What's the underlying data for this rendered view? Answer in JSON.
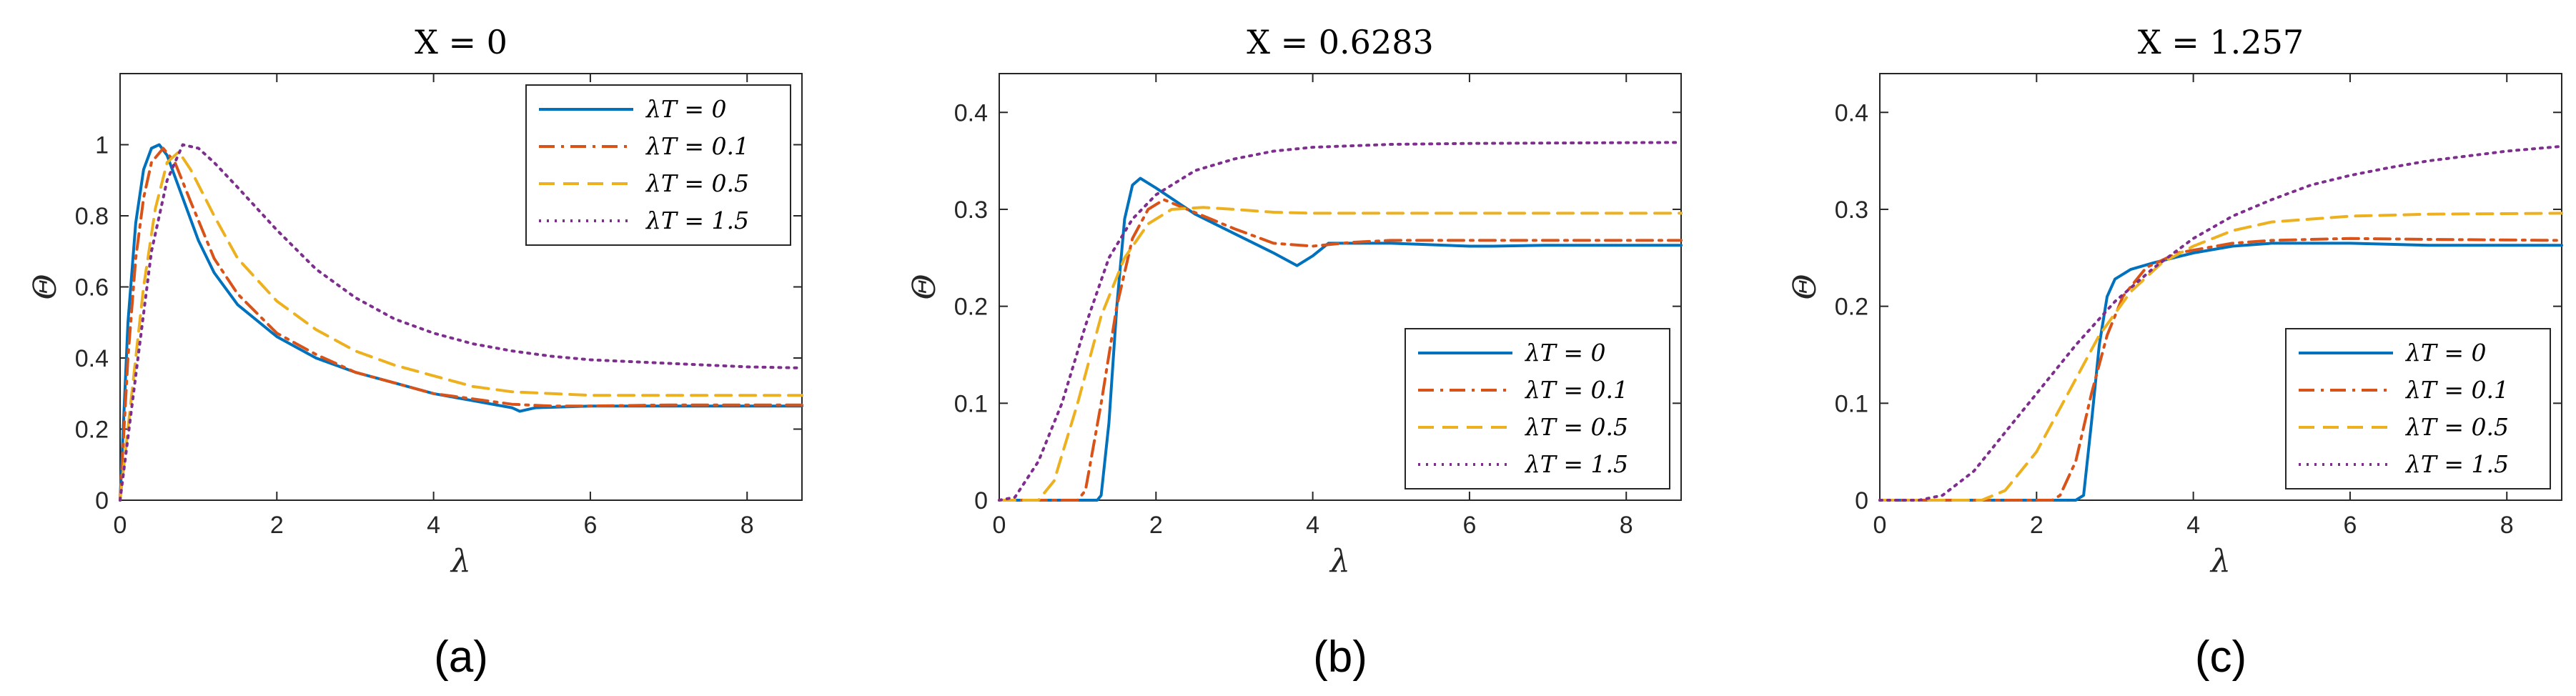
{
  "chart_data": [
    {
      "type": "line",
      "panel_caption": "(a)",
      "title": "X = 0",
      "xlabel": "λ",
      "ylabel": "Θ",
      "xlim": [
        0,
        8.7
      ],
      "ylim": [
        0,
        1.2
      ],
      "xticks": [
        "0",
        "2",
        "4",
        "6",
        "8"
      ],
      "yticks": [
        "0",
        "0.2",
        "0.4",
        "0.6",
        "0.8",
        "1"
      ],
      "legend_position": "top-right",
      "series": [
        {
          "name": "λT = 0",
          "color": "#0072BD",
          "dash": "solid",
          "points": [
            [
              0,
              0
            ],
            [
              0.1,
              0.5
            ],
            [
              0.2,
              0.78
            ],
            [
              0.3,
              0.93
            ],
            [
              0.4,
              0.99
            ],
            [
              0.5,
              1.0
            ],
            [
              0.6,
              0.97
            ],
            [
              0.8,
              0.85
            ],
            [
              1.0,
              0.73
            ],
            [
              1.2,
              0.64
            ],
            [
              1.5,
              0.55
            ],
            [
              2.0,
              0.46
            ],
            [
              2.5,
              0.4
            ],
            [
              3.0,
              0.36
            ],
            [
              3.5,
              0.33
            ],
            [
              4.0,
              0.3
            ],
            [
              4.5,
              0.28
            ],
            [
              5.0,
              0.26
            ],
            [
              5.1,
              0.25
            ],
            [
              5.3,
              0.26
            ],
            [
              6.0,
              0.265
            ],
            [
              7.0,
              0.265
            ],
            [
              8.7,
              0.265
            ]
          ]
        },
        {
          "name": "λT = 0.1",
          "color": "#D95319",
          "dash": "dashdot",
          "points": [
            [
              0,
              0
            ],
            [
              0.1,
              0.4
            ],
            [
              0.2,
              0.68
            ],
            [
              0.3,
              0.85
            ],
            [
              0.4,
              0.95
            ],
            [
              0.55,
              0.99
            ],
            [
              0.7,
              0.95
            ],
            [
              0.9,
              0.84
            ],
            [
              1.2,
              0.68
            ],
            [
              1.5,
              0.58
            ],
            [
              2.0,
              0.47
            ],
            [
              2.5,
              0.41
            ],
            [
              3.0,
              0.36
            ],
            [
              3.5,
              0.33
            ],
            [
              4.0,
              0.3
            ],
            [
              4.5,
              0.285
            ],
            [
              5.0,
              0.27
            ],
            [
              5.5,
              0.265
            ],
            [
              6.0,
              0.265
            ],
            [
              7.0,
              0.268
            ],
            [
              8.7,
              0.268
            ]
          ]
        },
        {
          "name": "λT = 0.5",
          "color": "#EDB120",
          "dash": "dashed",
          "points": [
            [
              0,
              0
            ],
            [
              0.15,
              0.3
            ],
            [
              0.3,
              0.6
            ],
            [
              0.45,
              0.82
            ],
            [
              0.6,
              0.95
            ],
            [
              0.75,
              0.98
            ],
            [
              0.9,
              0.93
            ],
            [
              1.2,
              0.8
            ],
            [
              1.5,
              0.68
            ],
            [
              2.0,
              0.56
            ],
            [
              2.5,
              0.48
            ],
            [
              3.0,
              0.42
            ],
            [
              3.5,
              0.38
            ],
            [
              4.0,
              0.35
            ],
            [
              4.5,
              0.32
            ],
            [
              5.0,
              0.305
            ],
            [
              5.5,
              0.3
            ],
            [
              6.0,
              0.295
            ],
            [
              7.0,
              0.295
            ],
            [
              8.7,
              0.295
            ]
          ]
        },
        {
          "name": "λT = 1.5",
          "color": "#7E2F8E",
          "dash": "dotted",
          "points": [
            [
              0,
              0
            ],
            [
              0.2,
              0.35
            ],
            [
              0.4,
              0.7
            ],
            [
              0.6,
              0.9
            ],
            [
              0.8,
              1.0
            ],
            [
              1.0,
              0.99
            ],
            [
              1.2,
              0.95
            ],
            [
              1.5,
              0.88
            ],
            [
              2.0,
              0.76
            ],
            [
              2.5,
              0.65
            ],
            [
              3.0,
              0.57
            ],
            [
              3.5,
              0.51
            ],
            [
              4.0,
              0.47
            ],
            [
              4.5,
              0.44
            ],
            [
              5.0,
              0.42
            ],
            [
              5.5,
              0.405
            ],
            [
              6.0,
              0.395
            ],
            [
              7.0,
              0.385
            ],
            [
              8.0,
              0.375
            ],
            [
              8.7,
              0.372
            ]
          ]
        }
      ]
    },
    {
      "type": "line",
      "panel_caption": "(b)",
      "title": "X = 0.6283",
      "xlabel": "λ",
      "ylabel": "Θ",
      "xlim": [
        0,
        8.7
      ],
      "ylim": [
        0,
        0.44
      ],
      "xticks": [
        "0",
        "2",
        "4",
        "6",
        "8"
      ],
      "yticks": [
        "0",
        "0.1",
        "0.2",
        "0.3",
        "0.4"
      ],
      "legend_position": "bottom-right",
      "series": [
        {
          "name": "λT = 0",
          "color": "#0072BD",
          "dash": "solid",
          "points": [
            [
              0,
              0
            ],
            [
              1.25,
              0
            ],
            [
              1.3,
              0.005
            ],
            [
              1.4,
              0.08
            ],
            [
              1.5,
              0.2
            ],
            [
              1.6,
              0.29
            ],
            [
              1.7,
              0.325
            ],
            [
              1.8,
              0.332
            ],
            [
              2.0,
              0.322
            ],
            [
              2.5,
              0.295
            ],
            [
              3.0,
              0.275
            ],
            [
              3.5,
              0.255
            ],
            [
              3.8,
              0.242
            ],
            [
              4.0,
              0.252
            ],
            [
              4.2,
              0.265
            ],
            [
              4.6,
              0.265
            ],
            [
              5.0,
              0.265
            ],
            [
              6.0,
              0.262
            ],
            [
              6.3,
              0.262
            ],
            [
              7.0,
              0.263
            ],
            [
              8.7,
              0.263
            ]
          ]
        },
        {
          "name": "λT = 0.1",
          "color": "#D95319",
          "dash": "dashdot",
          "points": [
            [
              0,
              0
            ],
            [
              1.0,
              0
            ],
            [
              1.1,
              0.01
            ],
            [
              1.3,
              0.1
            ],
            [
              1.5,
              0.2
            ],
            [
              1.7,
              0.27
            ],
            [
              1.9,
              0.3
            ],
            [
              2.1,
              0.31
            ],
            [
              2.4,
              0.3
            ],
            [
              3.0,
              0.28
            ],
            [
              3.5,
              0.265
            ],
            [
              4.0,
              0.262
            ],
            [
              4.5,
              0.266
            ],
            [
              5.0,
              0.268
            ],
            [
              6.0,
              0.268
            ],
            [
              8.7,
              0.268
            ]
          ]
        },
        {
          "name": "λT = 0.5",
          "color": "#EDB120",
          "dash": "dashed",
          "points": [
            [
              0,
              0
            ],
            [
              0.5,
              0
            ],
            [
              0.7,
              0.02
            ],
            [
              1.0,
              0.1
            ],
            [
              1.3,
              0.19
            ],
            [
              1.6,
              0.25
            ],
            [
              1.9,
              0.285
            ],
            [
              2.2,
              0.3
            ],
            [
              2.6,
              0.302
            ],
            [
              3.0,
              0.3
            ],
            [
              3.5,
              0.297
            ],
            [
              4.0,
              0.296
            ],
            [
              5.0,
              0.296
            ],
            [
              8.7,
              0.296
            ]
          ]
        },
        {
          "name": "λT = 1.5",
          "color": "#7E2F8E",
          "dash": "dotted",
          "points": [
            [
              0,
              0
            ],
            [
              0.2,
              0.003
            ],
            [
              0.5,
              0.04
            ],
            [
              0.8,
              0.1
            ],
            [
              1.1,
              0.18
            ],
            [
              1.4,
              0.25
            ],
            [
              1.7,
              0.29
            ],
            [
              2.0,
              0.315
            ],
            [
              2.5,
              0.34
            ],
            [
              3.0,
              0.352
            ],
            [
              3.5,
              0.36
            ],
            [
              4.0,
              0.364
            ],
            [
              5.0,
              0.367
            ],
            [
              6.0,
              0.368
            ],
            [
              8.7,
              0.369
            ]
          ]
        }
      ]
    },
    {
      "type": "line",
      "panel_caption": "(c)",
      "title": "X = 1.257",
      "xlabel": "λ",
      "ylabel": "Θ",
      "xlim": [
        0,
        8.7
      ],
      "ylim": [
        0,
        0.44
      ],
      "xticks": [
        "0",
        "2",
        "4",
        "6",
        "8"
      ],
      "yticks": [
        "0",
        "0.1",
        "0.2",
        "0.3",
        "0.4"
      ],
      "legend_position": "bottom-right",
      "series": [
        {
          "name": "λT = 0",
          "color": "#0072BD",
          "dash": "solid",
          "points": [
            [
              0,
              0
            ],
            [
              2.5,
              0
            ],
            [
              2.6,
              0.005
            ],
            [
              2.7,
              0.08
            ],
            [
              2.8,
              0.16
            ],
            [
              2.9,
              0.21
            ],
            [
              3.0,
              0.228
            ],
            [
              3.2,
              0.238
            ],
            [
              3.5,
              0.245
            ],
            [
              4.0,
              0.255
            ],
            [
              4.5,
              0.262
            ],
            [
              5.0,
              0.265
            ],
            [
              6.0,
              0.265
            ],
            [
              7.0,
              0.263
            ],
            [
              8.7,
              0.263
            ]
          ]
        },
        {
          "name": "λT = 0.1",
          "color": "#D95319",
          "dash": "dashdot",
          "points": [
            [
              0,
              0
            ],
            [
              2.2,
              0
            ],
            [
              2.3,
              0.005
            ],
            [
              2.5,
              0.04
            ],
            [
              2.7,
              0.11
            ],
            [
              2.9,
              0.17
            ],
            [
              3.1,
              0.21
            ],
            [
              3.4,
              0.24
            ],
            [
              3.8,
              0.255
            ],
            [
              4.5,
              0.265
            ],
            [
              5.0,
              0.268
            ],
            [
              6.0,
              0.27
            ],
            [
              7.0,
              0.269
            ],
            [
              8.7,
              0.268
            ]
          ]
        },
        {
          "name": "λT = 0.5",
          "color": "#EDB120",
          "dash": "dashed",
          "points": [
            [
              0,
              0
            ],
            [
              1.3,
              0
            ],
            [
              1.6,
              0.01
            ],
            [
              2.0,
              0.05
            ],
            [
              2.4,
              0.11
            ],
            [
              2.8,
              0.17
            ],
            [
              3.2,
              0.215
            ],
            [
              3.6,
              0.245
            ],
            [
              4.0,
              0.262
            ],
            [
              4.5,
              0.278
            ],
            [
              5.0,
              0.287
            ],
            [
              6.0,
              0.293
            ],
            [
              7.0,
              0.295
            ],
            [
              8.7,
              0.296
            ]
          ]
        },
        {
          "name": "λT = 1.5",
          "color": "#7E2F8E",
          "dash": "dotted",
          "points": [
            [
              0,
              0
            ],
            [
              0.5,
              0
            ],
            [
              0.8,
              0.005
            ],
            [
              1.2,
              0.03
            ],
            [
              1.6,
              0.07
            ],
            [
              2.0,
              0.11
            ],
            [
              2.5,
              0.16
            ],
            [
              3.0,
              0.205
            ],
            [
              3.5,
              0.24
            ],
            [
              4.0,
              0.27
            ],
            [
              4.5,
              0.293
            ],
            [
              5.0,
              0.31
            ],
            [
              5.5,
              0.325
            ],
            [
              6.0,
              0.335
            ],
            [
              6.5,
              0.343
            ],
            [
              7.0,
              0.35
            ],
            [
              7.5,
              0.355
            ],
            [
              8.0,
              0.36
            ],
            [
              8.7,
              0.365
            ]
          ]
        }
      ]
    }
  ]
}
